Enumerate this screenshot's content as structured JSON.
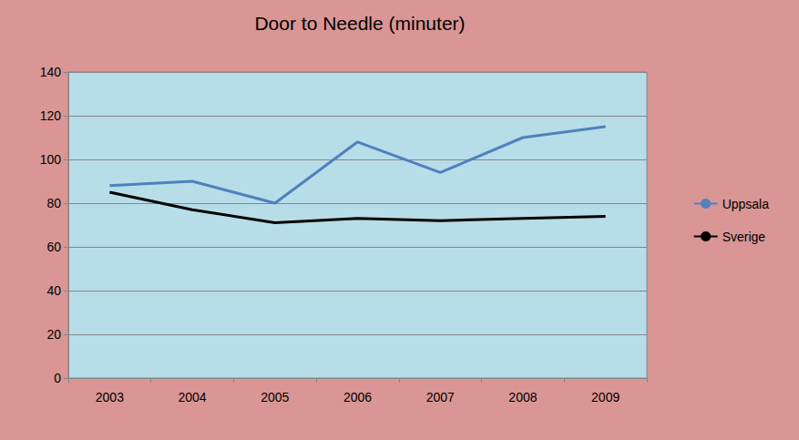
{
  "chart_data": {
    "type": "line",
    "title": "Door to Needle (minuter)",
    "categories": [
      "2003",
      "2004",
      "2005",
      "2006",
      "2007",
      "2008",
      "2009"
    ],
    "series": [
      {
        "name": "Uppsala",
        "color": "#4F81BD",
        "values": [
          88,
          90,
          80,
          108,
          94,
          110,
          115
        ]
      },
      {
        "name": "Sverige",
        "color": "#000000",
        "values": [
          85,
          77,
          71,
          73,
          72,
          73,
          74
        ]
      }
    ],
    "ylim": [
      0,
      140
    ],
    "yticks": [
      0,
      20,
      40,
      60,
      80,
      100,
      120,
      140
    ],
    "grid": true,
    "legend": "right"
  }
}
